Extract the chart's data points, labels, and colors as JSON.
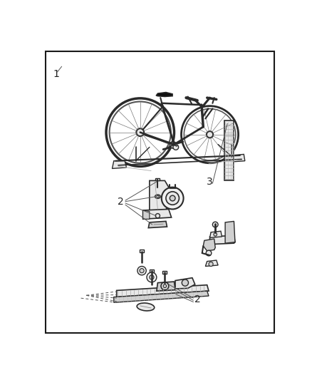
{
  "bg_color": "#ffffff",
  "border_color": "#1a1a1a",
  "line_color": "#2a2a2a",
  "fill_light": "#e8e8e8",
  "fill_med": "#d0d0d0",
  "fill_dark": "#b0b0b0",
  "text_color": "#222222",
  "label1": "1",
  "label2": "2",
  "label3": "3",
  "figsize": [
    4.38,
    5.33
  ],
  "dpi": 100
}
